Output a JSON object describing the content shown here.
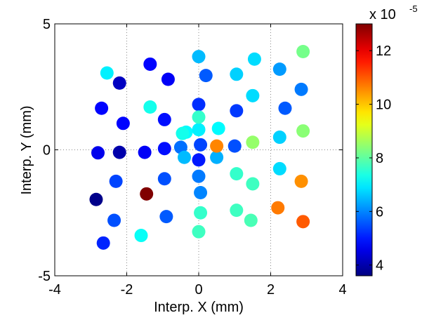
{
  "chart_data": {
    "type": "scatter",
    "xlabel": "Interp. X (mm)",
    "ylabel": "Interp. Y (mm)",
    "xlim": [
      -4,
      4
    ],
    "ylim": [
      -5,
      5
    ],
    "x_ticks": [
      "-4",
      "-2",
      "0",
      "2",
      "4"
    ],
    "y_ticks": [
      "-5",
      "0",
      "5"
    ],
    "grid": "zero-lines dotted",
    "colorbar": {
      "colormap": "jet",
      "range": [
        3.6,
        13.0
      ],
      "ticks": [
        "4",
        "6",
        "8",
        "10",
        "12"
      ],
      "exponent_label": "x 10",
      "exponent_power": "-5",
      "tick_values": [
        4,
        6,
        8,
        10,
        12
      ],
      "position": "right"
    },
    "points": [
      {
        "x": -2.85,
        "y": -1.97,
        "v": 3.7
      },
      {
        "x": -1.45,
        "y": -1.75,
        "v": 13.0
      },
      {
        "x": -2.2,
        "y": -0.1,
        "v": 4.0
      },
      {
        "x": -2.8,
        "y": -0.12,
        "v": 4.6
      },
      {
        "x": -1.5,
        "y": -0.1,
        "v": 4.7
      },
      {
        "x": -2.2,
        "y": 2.65,
        "v": 4.2
      },
      {
        "x": -1.35,
        "y": 3.4,
        "v": 4.8
      },
      {
        "x": -0.85,
        "y": 2.8,
        "v": 4.7
      },
      {
        "x": -2.7,
        "y": 1.65,
        "v": 4.8
      },
      {
        "x": -2.1,
        "y": 1.05,
        "v": 4.8
      },
      {
        "x": -0.95,
        "y": 1.2,
        "v": 4.9
      },
      {
        "x": -0.95,
        "y": 0.05,
        "v": 4.9
      },
      {
        "x": -2.65,
        "y": -3.7,
        "v": 5.1
      },
      {
        "x": -2.3,
        "y": -1.25,
        "v": 5.4
      },
      {
        "x": -2.35,
        "y": -2.8,
        "v": 5.5
      },
      {
        "x": -0.95,
        "y": -1.15,
        "v": 5.5
      },
      {
        "x": -0.9,
        "y": -2.65,
        "v": 5.6
      },
      {
        "x": 0.0,
        "y": -0.4,
        "v": 5.0
      },
      {
        "x": 0.05,
        "y": 0.2,
        "v": 5.4
      },
      {
        "x": -0.5,
        "y": 0.1,
        "v": 5.8
      },
      {
        "x": 0.0,
        "y": 1.8,
        "v": 5.2
      },
      {
        "x": 0.2,
        "y": 2.95,
        "v": 5.6
      },
      {
        "x": 0.0,
        "y": -1.05,
        "v": 5.9
      },
      {
        "x": 0.05,
        "y": -1.7,
        "v": 6.0
      },
      {
        "x": 0.5,
        "y": -0.3,
        "v": 6.4
      },
      {
        "x": 1.05,
        "y": 1.55,
        "v": 5.3
      },
      {
        "x": 1.0,
        "y": 0.15,
        "v": 5.5
      },
      {
        "x": 2.4,
        "y": 1.65,
        "v": 5.6
      },
      {
        "x": 2.85,
        "y": 2.4,
        "v": 5.9
      },
      {
        "x": 2.25,
        "y": 3.2,
        "v": 6.2
      },
      {
        "x": 0.0,
        "y": 3.7,
        "v": 6.5
      },
      {
        "x": 1.05,
        "y": 3.0,
        "v": 6.7
      },
      {
        "x": 1.55,
        "y": 3.6,
        "v": 6.8
      },
      {
        "x": 1.5,
        "y": 2.15,
        "v": 6.8
      },
      {
        "x": 2.25,
        "y": 0.5,
        "v": 6.7
      },
      {
        "x": 2.25,
        "y": -0.75,
        "v": 6.8
      },
      {
        "x": -0.4,
        "y": -0.3,
        "v": 6.5
      },
      {
        "x": -0.35,
        "y": 0.7,
        "v": 7.1
      },
      {
        "x": 0.0,
        "y": 0.8,
        "v": 7.0
      },
      {
        "x": 0.55,
        "y": 0.85,
        "v": 7.1
      },
      {
        "x": -0.45,
        "y": 0.65,
        "v": 7.3
      },
      {
        "x": 0.0,
        "y": 1.3,
        "v": 7.6
      },
      {
        "x": -2.55,
        "y": 3.05,
        "v": 7.0
      },
      {
        "x": -1.35,
        "y": 1.7,
        "v": 7.3
      },
      {
        "x": -1.6,
        "y": -3.4,
        "v": 7.2
      },
      {
        "x": 1.05,
        "y": -0.95,
        "v": 7.6
      },
      {
        "x": 1.05,
        "y": -2.4,
        "v": 7.7
      },
      {
        "x": 1.5,
        "y": -1.35,
        "v": 7.7
      },
      {
        "x": 1.45,
        "y": -2.8,
        "v": 7.8
      },
      {
        "x": 0.05,
        "y": -2.5,
        "v": 7.6
      },
      {
        "x": 0.0,
        "y": -3.25,
        "v": 7.7
      },
      {
        "x": 1.5,
        "y": 0.3,
        "v": 8.5
      },
      {
        "x": 2.9,
        "y": 0.75,
        "v": 8.4
      },
      {
        "x": 2.9,
        "y": 3.9,
        "v": 8.2
      },
      {
        "x": 0.5,
        "y": 0.15,
        "v": 10.6
      },
      {
        "x": 2.85,
        "y": -1.25,
        "v": 10.5
      },
      {
        "x": 2.2,
        "y": -2.3,
        "v": 10.7
      },
      {
        "x": 2.9,
        "y": -2.85,
        "v": 11.0
      }
    ]
  }
}
